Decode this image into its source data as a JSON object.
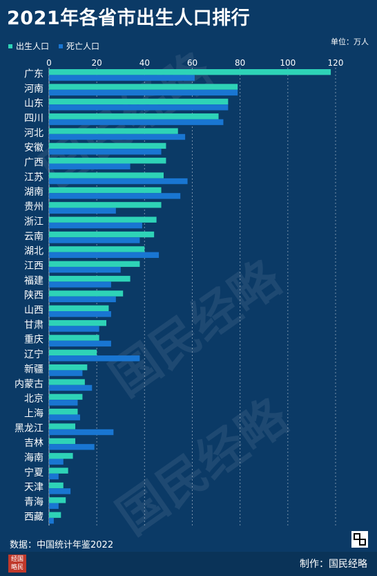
{
  "title": "2021年各省市出生人口排行",
  "unit": "单位：万人",
  "source": "数据：中国统计年鉴2022",
  "maker": "制作：国民经略",
  "logo_text": [
    "经国",
    "略民"
  ],
  "watermark": "国民经略",
  "colors": {
    "birth": "#2ed3b7",
    "death": "#1976d2",
    "background": "#0b3a66",
    "grid": "#ffffff"
  },
  "chart_data": {
    "type": "bar",
    "orientation": "horizontal",
    "title": "2021年各省市出生人口排行",
    "xlim": [
      0,
      120
    ],
    "xticks": [
      0,
      20,
      40,
      60,
      80,
      100,
      120
    ],
    "grid": true,
    "legend_position": "top-left",
    "categories": [
      "广东",
      "河南",
      "山东",
      "四川",
      "河北",
      "安徽",
      "广西",
      "江苏",
      "湖南",
      "贵州",
      "浙江",
      "云南",
      "湖北",
      "江西",
      "福建",
      "陕西",
      "山西",
      "甘肃",
      "重庆",
      "辽宁",
      "新疆",
      "内蒙古",
      "北京",
      "上海",
      "黑龙江",
      "吉林",
      "海南",
      "宁夏",
      "天津",
      "青海",
      "西藏"
    ],
    "series": [
      {
        "name": "出生人口",
        "values": [
          118,
          79,
          75,
          71,
          54,
          49,
          49,
          48,
          47,
          47,
          45,
          44,
          40,
          38,
          34,
          31,
          25,
          24,
          21,
          20,
          16,
          15,
          14,
          12,
          11,
          11,
          10,
          8,
          6,
          7,
          5
        ]
      },
      {
        "name": "死亡人口",
        "values": [
          61,
          79,
          75,
          73,
          57,
          47,
          34,
          58,
          55,
          28,
          39,
          38,
          46,
          30,
          26,
          28,
          26,
          21,
          26,
          38,
          14,
          18,
          12,
          13,
          27,
          19,
          6,
          4,
          9,
          4,
          2
        ]
      }
    ]
  }
}
